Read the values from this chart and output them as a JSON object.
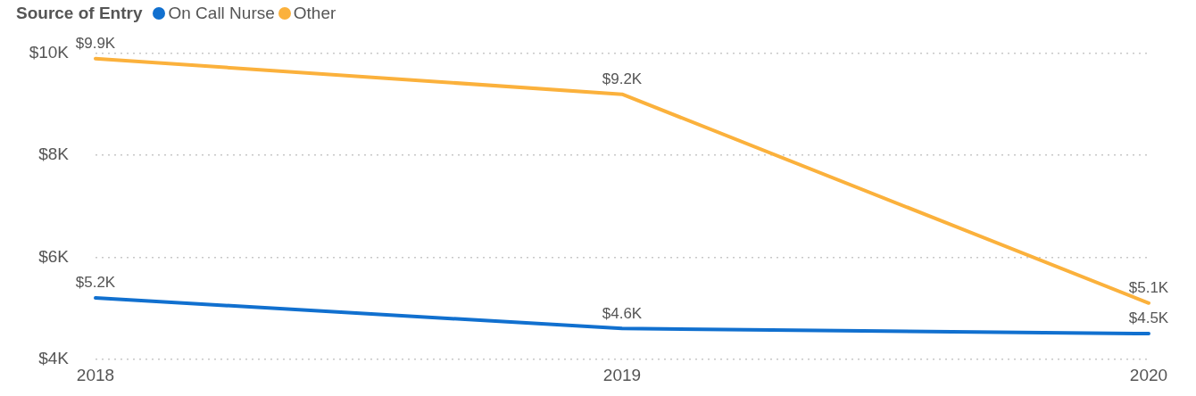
{
  "chart_data": {
    "type": "line",
    "legend_title": "Source of Entry",
    "categories": [
      "2018",
      "2019",
      "2020"
    ],
    "series": [
      {
        "name": "On Call Nurse",
        "color": "#1170cf",
        "values": [
          5.2,
          4.6,
          4.5
        ],
        "value_labels": [
          "$5.2K",
          "$4.6K",
          "$4.5K"
        ]
      },
      {
        "name": "Other",
        "color": "#fbb13c",
        "values": [
          9.9,
          9.2,
          5.1
        ],
        "value_labels": [
          "$9.9K",
          "$9.2K",
          "$5.1K"
        ]
      }
    ],
    "ylim": [
      4,
      10
    ],
    "yticks": [
      {
        "value": 4,
        "label": "$4K"
      },
      {
        "value": 6,
        "label": "$6K"
      },
      {
        "value": 8,
        "label": "$8K"
      },
      {
        "value": 10,
        "label": "$10K"
      }
    ],
    "grid": "y",
    "legend": "top left",
    "marker": "none",
    "line_style": "solid"
  }
}
